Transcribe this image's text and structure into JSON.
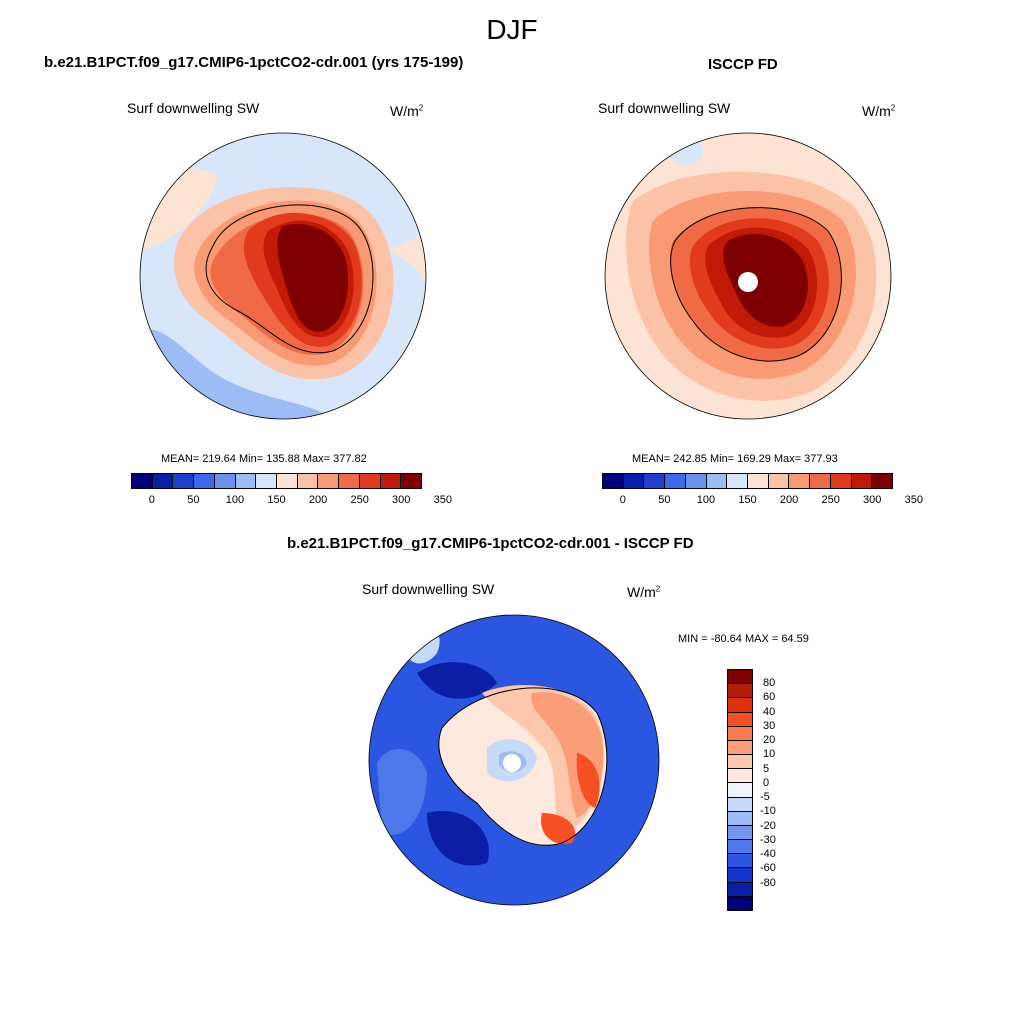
{
  "figure": {
    "title": "DJF"
  },
  "panels": [
    {
      "title": "b.e21.B1PCT.f09_g17.CMIP6-1pctCO2-cdr.001 (yrs 175-199)",
      "variable": "Surf downwelling SW",
      "units_base": "W/m",
      "units_exp": "2",
      "stats": "MEAN= 219.64  Min= 135.88  Max= 377.82"
    },
    {
      "title": "ISCCP FD",
      "variable": "Surf downwelling SW",
      "units_base": "W/m",
      "units_exp": "2",
      "stats": "MEAN= 242.85  Min= 169.29  Max= 377.93"
    },
    {
      "title": "b.e21.B1PCT.f09_g17.CMIP6-1pctCO2-cdr.001 - ISCCP FD",
      "variable": "Surf downwelling SW",
      "units_base": "W/m",
      "units_exp": "2",
      "stats": "MIN = -80.64 MAX =  64.59"
    }
  ],
  "colorbar_abs": {
    "colors": [
      "#00007f",
      "#0a1fa8",
      "#1f3fd1",
      "#3d6ae8",
      "#6a93f0",
      "#9cbcf5",
      "#d7e6fb",
      "#fde3d4",
      "#fcc2a6",
      "#f89a74",
      "#f06a46",
      "#e23a1c",
      "#c21a08",
      "#7f0000"
    ],
    "labels": [
      "0",
      "50",
      "100",
      "150",
      "200",
      "250",
      "300",
      "350"
    ]
  },
  "colorbar_diff": {
    "colors": [
      "#7f0000",
      "#b21c04",
      "#e0300e",
      "#f5501f",
      "#f87a4e",
      "#fa9e78",
      "#fcc7ab",
      "#fde9dd",
      "#eef4fd",
      "#c6d9f8",
      "#9dbcf3",
      "#7299ef",
      "#4c78ea",
      "#2b56e2",
      "#1335cc",
      "#0a1fa5",
      "#00007f"
    ],
    "labels": [
      "80",
      "60",
      "40",
      "30",
      "20",
      "10",
      "5",
      "0",
      "-5",
      "-10",
      "-20",
      "-30",
      "-40",
      "-60",
      "-80"
    ]
  },
  "map_colors": {
    "ocean_light": "#d7e6fb",
    "ocean_blue": "#9cbcf5",
    "pale_orange": "#fde3d4",
    "orange1": "#fcc2a6",
    "orange2": "#f89a74",
    "orange3": "#f06a46",
    "red1": "#e23a1c",
    "red2": "#c21a08",
    "dark_red": "#7f0000",
    "diff_dark": "#0a1fa5",
    "diff_mid": "#2b56e2",
    "diff_light": "#4c78ea"
  }
}
